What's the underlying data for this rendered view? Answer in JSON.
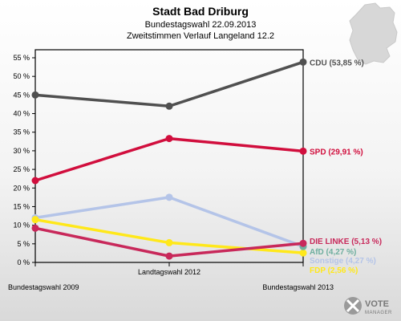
{
  "chart_data": {
    "type": "line",
    "title": "Stadt Bad Driburg",
    "subtitle_lines": [
      "Bundestagswahl 22.09.2013",
      "Zweitstimmen Verlauf Langeland 12.2"
    ],
    "categories": [
      "Bundestagswahl 2009",
      "Landtagswahl 2012",
      "Bundestagswahl 2013"
    ],
    "y_ticks": [
      "0 %",
      "5 %",
      "10 %",
      "15 %",
      "20 %",
      "25 %",
      "30 %",
      "35 %",
      "40 %",
      "45 %",
      "50 %",
      "55 %"
    ],
    "ylim": [
      0,
      55
    ],
    "y_tick_values": [
      0,
      5,
      10,
      15,
      20,
      25,
      30,
      35,
      40,
      45,
      50,
      55
    ],
    "grid": false,
    "series": [
      {
        "name": "CDU",
        "label": "CDU (53,85 %)",
        "color": "#505050",
        "values": [
          45.0,
          42.0,
          53.85
        ]
      },
      {
        "name": "SPD",
        "label": "SPD (29,91 %)",
        "color": "#d10e3d",
        "values": [
          22.0,
          33.3,
          29.91
        ]
      },
      {
        "name": "Sonstige",
        "label": "Sonstige (4,27 %)",
        "color": "#b4c4e8",
        "values": [
          12.0,
          17.5,
          4.27
        ]
      },
      {
        "name": "FDP",
        "label": "FDP (2,56 %)",
        "color": "#ffe81a",
        "values": [
          11.5,
          5.3,
          2.56
        ]
      },
      {
        "name": "AfD",
        "label": "AfD (4,27 %)",
        "color": "#6faf9f",
        "values": [
          null,
          null,
          4.27
        ]
      },
      {
        "name": "DIE LINKE",
        "label": "DIE LINKE (5,13 %)",
        "color": "#c8285a",
        "values": [
          9.2,
          1.7,
          5.13
        ]
      }
    ]
  },
  "logo": {
    "line1": "VOTE",
    "line2": "MANAGER"
  }
}
